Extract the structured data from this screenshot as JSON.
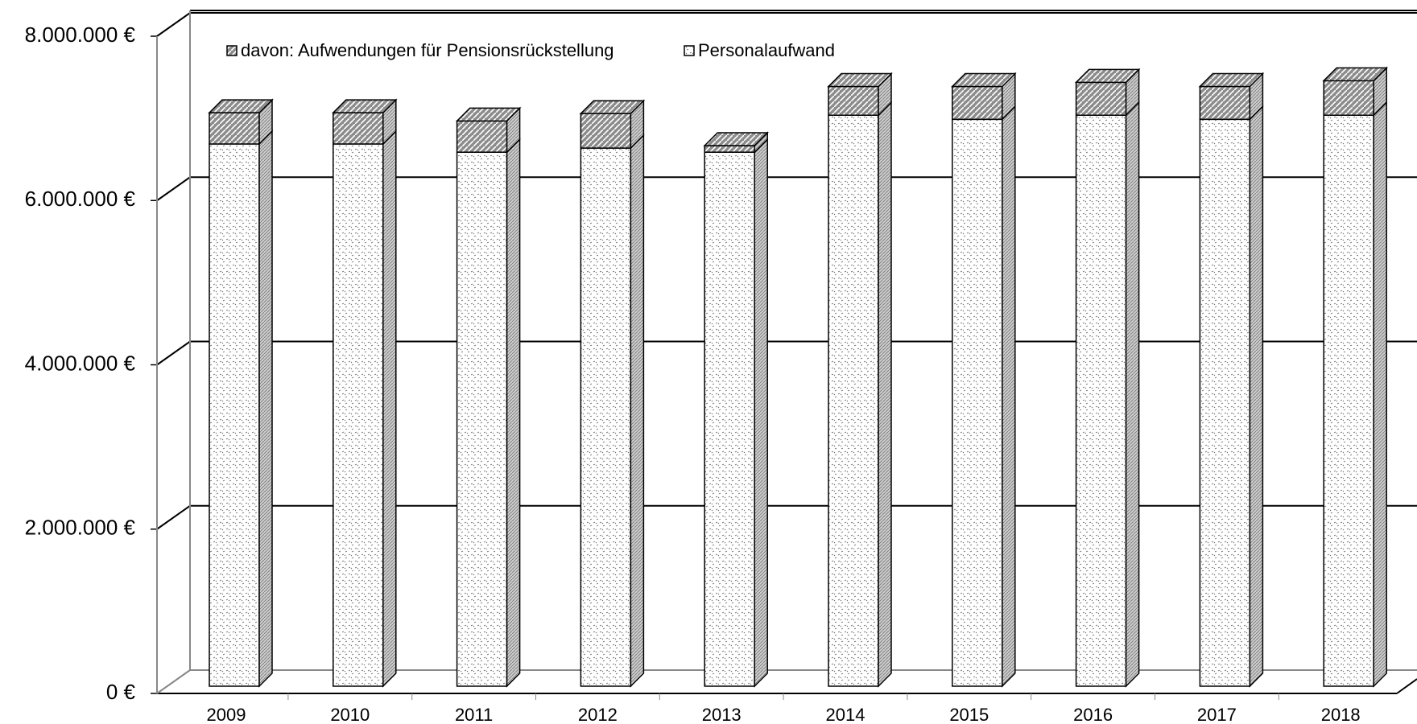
{
  "chart_data": {
    "type": "bar3d_stacked",
    "categories": [
      "2009",
      "2010",
      "2011",
      "2012",
      "2013",
      "2014",
      "2015",
      "2016",
      "2017",
      "2018"
    ],
    "series": [
      {
        "name": "davon: Aufwendungen für Pensionsrückstellung",
        "color": "#8c8c8c",
        "values": [
          380000,
          380000,
          380000,
          420000,
          80000,
          350000,
          400000,
          400000,
          400000,
          420000
        ]
      },
      {
        "name": "Personalaufwand",
        "color": "#ffffff",
        "values": [
          6600000,
          6600000,
          6500000,
          6550000,
          6500000,
          6950000,
          6900000,
          6950000,
          6900000,
          6950000
        ]
      }
    ],
    "ylim": [
      0,
      8000000
    ],
    "yticks": [
      {
        "value": 0,
        "label": "0 €"
      },
      {
        "value": 2000000,
        "label": "2.000.000 €"
      },
      {
        "value": 4000000,
        "label": "4.000.000 €"
      },
      {
        "value": 6000000,
        "label": "6.000.000 €"
      },
      {
        "value": 8000000,
        "label": "8.000.000 €"
      }
    ],
    "grid": true
  }
}
